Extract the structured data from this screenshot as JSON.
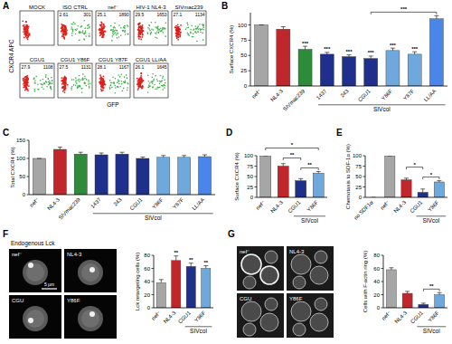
{
  "flow_cytometry": {
    "title": "A",
    "x_label": "GFP",
    "y_label": "CXCR4 APC",
    "plots": [
      {
        "label": "MOCK"
      },
      {
        "label": "ISO CTRL",
        "gates": [
          2.61,
          301
        ]
      },
      {
        "label": "nef⁻",
        "gates": [
          25.1,
          1890
        ]
      },
      {
        "label": "HIV-1 NL4-3",
        "gates": [
          29.5,
          1653
        ]
      },
      {
        "label": "SIVmac239",
        "gates": [
          27.1,
          1134
        ]
      },
      {
        "label": "CGU1",
        "gates": [
          27.9,
          1108
        ]
      },
      {
        "label": "CGU1 Y86F",
        "gates": [
          27.5,
          1131
        ]
      },
      {
        "label": "CGU1 Y87F",
        "gates": [
          28.1,
          1167
        ]
      },
      {
        "label": "CGU1 LL/AA",
        "gates": [
          26.1,
          1645
        ]
      }
    ]
  },
  "micrographs": [
    {
      "caption": "Endogenous Lck",
      "scale_bar": "5 µm",
      "labels": [
        "nef⁻",
        "NL4-3",
        "CGU",
        "Y86F"
      ]
    },
    {
      "labels": [
        "nef⁻",
        "NL4-3",
        "CGU",
        "Y86F"
      ]
    }
  ],
  "chart_data": [
    {
      "type": "bar",
      "title": "B",
      "y_label": "Surface CXCR4 (%)",
      "categories": [
        "nef⁻",
        "NL4-3",
        "SIVmac239",
        "1437",
        "243",
        "CGU1",
        "Y86F",
        "Y87F",
        "LL/AA"
      ],
      "values": [
        100,
        93,
        60,
        52,
        48,
        45,
        58,
        52,
        110
      ],
      "errors": [
        0,
        4,
        5,
        3,
        3,
        4,
        4,
        4,
        5
      ],
      "colors": [
        "#a6a6a6",
        "#c0272d",
        "#2e8b3a",
        "#1f2f8c",
        "#1f2f8c",
        "#1f2f8c",
        "#6fa8dc",
        "#6fa8dc",
        "#4a86e8"
      ],
      "annotations": [
        null,
        null,
        "***",
        "***",
        "***",
        "***",
        "***",
        "***",
        null
      ],
      "brackets": [
        {
          "from": "CGU1",
          "to": "LL/AA",
          "label": "***"
        }
      ],
      "groups": [
        {
          "label": "SIVcol",
          "from": "1437",
          "to": "LL/AA"
        }
      ],
      "ylim": [
        0,
        120
      ],
      "yticks": [
        0,
        25,
        50,
        75,
        100
      ]
    },
    {
      "type": "bar",
      "title": "C",
      "y_label": "Total CXCR4 (%)",
      "categories": [
        "nef⁻",
        "NL4-3",
        "SIVmac239",
        "1437",
        "243",
        "CGU1",
        "Y86F",
        "Y87F",
        "LL/AA"
      ],
      "values": [
        100,
        125,
        112,
        110,
        112,
        100,
        103,
        103,
        105
      ],
      "errors": [
        0,
        6,
        5,
        5,
        5,
        4,
        5,
        5,
        5
      ],
      "colors": [
        "#a6a6a6",
        "#c0272d",
        "#2e8b3a",
        "#1f2f8c",
        "#1f2f8c",
        "#1f2f8c",
        "#6fa8dc",
        "#6fa8dc",
        "#4a86e8"
      ],
      "groups": [
        {
          "label": "SIVcol",
          "from": "1437",
          "to": "LL/AA"
        }
      ],
      "ylim": [
        0,
        150
      ],
      "yticks": [
        0,
        50,
        100,
        150
      ]
    },
    {
      "type": "bar",
      "title": "D",
      "y_label": "Surface CXCR4 (%)",
      "categories": [
        "nef⁻",
        "NL4-3",
        "CGU1",
        "Y86F"
      ],
      "values": [
        100,
        75,
        40,
        58
      ],
      "errors": [
        0,
        6,
        5,
        4
      ],
      "colors": [
        "#a6a6a6",
        "#c0272d",
        "#1f2f8c",
        "#6fa8dc"
      ],
      "brackets": [
        {
          "from": "CGU1",
          "to": "Y86F",
          "label": "**"
        },
        {
          "from": "NL4-3",
          "to": "CGU1",
          "label": "**"
        },
        {
          "from": "nef⁻",
          "to": "Y86F",
          "label": "*"
        }
      ],
      "groups": [
        {
          "label": "SIVcol",
          "from": "CGU1",
          "to": "Y86F"
        }
      ],
      "ylim": [
        0,
        100
      ],
      "yticks": [
        0,
        25,
        50,
        75,
        100
      ]
    },
    {
      "type": "bar",
      "title": "E",
      "y_label": "Chemotaxis to SDF-1α (%)",
      "categories": [
        "no SDF1α",
        "nef⁻",
        "NL4-3",
        "CGU1",
        "Y86F"
      ],
      "values": [
        0,
        100,
        42,
        12,
        37
      ],
      "errors": [
        0,
        0,
        4,
        8,
        3
      ],
      "colors": [
        "#ffffff",
        "#a6a6a6",
        "#c0272d",
        "#1f2f8c",
        "#6fa8dc"
      ],
      "brackets": [
        {
          "from": "CGU1",
          "to": "Y86F",
          "label": "*"
        },
        {
          "from": "NL4-3",
          "to": "CGU1",
          "label": "*"
        }
      ],
      "groups": [
        {
          "label": "SIVcol",
          "from": "CGU1",
          "to": "Y86F"
        }
      ],
      "ylim": [
        0,
        100
      ],
      "yticks": [
        0,
        25,
        50,
        75,
        100
      ]
    },
    {
      "type": "bar",
      "title": "F",
      "y_label": "Lck retargeting cells (%)",
      "categories": [
        "nef⁻",
        "NL4-3",
        "CGU1",
        "Y86F"
      ],
      "values": [
        38,
        72,
        63,
        60
      ],
      "errors": [
        5,
        7,
        5,
        4
      ],
      "colors": [
        "#a6a6a6",
        "#c0272d",
        "#1f2f8c",
        "#6fa8dc"
      ],
      "annotations": [
        null,
        "**",
        "**",
        "**"
      ],
      "groups": [
        {
          "label": "SIVcol",
          "from": "CGU1",
          "to": "Y86F"
        }
      ],
      "ylim": [
        0,
        80
      ],
      "yticks": [
        0,
        20,
        40,
        60,
        80
      ]
    },
    {
      "type": "bar",
      "title": "G",
      "y_label": "Cells with F-actin ring (%)",
      "categories": [
        "nef⁻",
        "NL4-3",
        "CGU1",
        "Y86F"
      ],
      "values": [
        58,
        22,
        5,
        20
      ],
      "errors": [
        3,
        3,
        2,
        3
      ],
      "colors": [
        "#a6a6a6",
        "#c0272d",
        "#1f2f8c",
        "#6fa8dc"
      ],
      "brackets": [
        {
          "from": "CGU1",
          "to": "Y86F",
          "label": "**"
        }
      ],
      "groups": [
        {
          "label": "SIVcol",
          "from": "CGU1",
          "to": "Y86F"
        }
      ],
      "ylim": [
        0,
        80
      ],
      "yticks": [
        0,
        20,
        40,
        60,
        80
      ]
    }
  ]
}
